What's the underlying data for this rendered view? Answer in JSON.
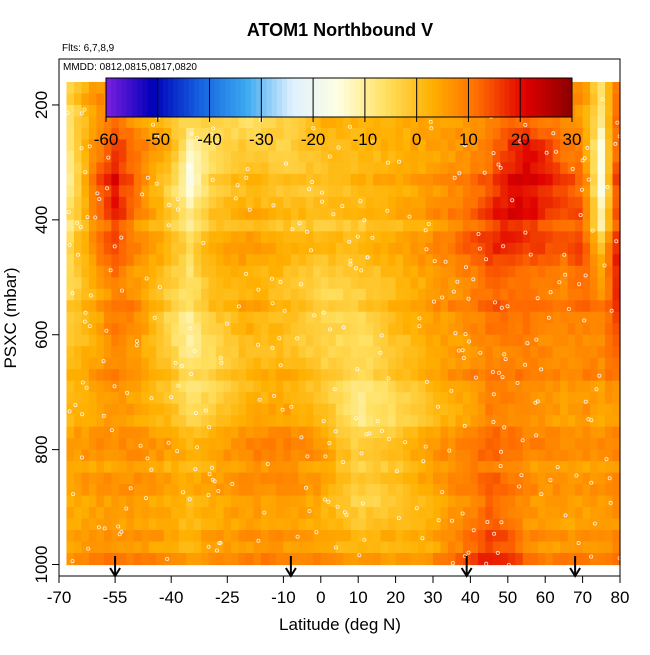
{
  "figure": {
    "title": "ATOM1 Northbound V",
    "flights_note": "Flts: 6,7,8,9",
    "dates_note": "MMDD: 0812,0815,0817,0820"
  },
  "chart_data": {
    "type": "heatmap",
    "title": "ATOM1 Northbound V",
    "xlabel": "Latitude (deg N)",
    "ylabel": "PSXC (mbar)",
    "x_ticks": [
      -70,
      -55,
      -40,
      -25,
      -10,
      0,
      10,
      20,
      30,
      40,
      50,
      60,
      70,
      80
    ],
    "y_ticks": [
      200,
      400,
      600,
      800,
      1000
    ],
    "xlim": [
      -70,
      80
    ],
    "ylim": [
      1020,
      120
    ],
    "data_extent": {
      "x": [
        -68,
        80
      ],
      "p": [
        160,
        1000
      ]
    },
    "y_reversed": true,
    "colorbar": {
      "ticks": [
        -60,
        -50,
        -40,
        -30,
        -20,
        -10,
        0,
        10,
        20,
        30
      ],
      "range": [
        -60,
        30
      ],
      "colors": [
        "#7b20e0",
        "#0000b8",
        "#1560e0",
        "#3aa8f0",
        "#dff1ff",
        "#ffffe0",
        "#ffe060",
        "#ffb000",
        "#ff6a00",
        "#e00000",
        "#8b0000"
      ]
    },
    "profile_markers_lat": [
      -55,
      -8,
      39,
      68
    ],
    "field": {
      "latitudes": [
        -68,
        -60,
        -55,
        -50,
        -40,
        -35,
        -30,
        -20,
        -10,
        0,
        10,
        20,
        30,
        40,
        45,
        50,
        55,
        60,
        65,
        70,
        75,
        80
      ],
      "pressures": [
        180,
        230,
        280,
        330,
        380,
        430,
        480,
        530,
        580,
        630,
        680,
        730,
        780,
        830,
        880,
        930,
        980
      ],
      "values": [
        [
          -4,
          6,
          6,
          6,
          5,
          4,
          4,
          4,
          3,
          6,
          6,
          7,
          8,
          8,
          9,
          10,
          12,
          10,
          8,
          7,
          -6,
          14
        ],
        [
          -6,
          8,
          12,
          8,
          2,
          -4,
          0,
          -4,
          -2,
          4,
          4,
          4,
          6,
          8,
          10,
          12,
          14,
          12,
          10,
          8,
          -8,
          18
        ],
        [
          -8,
          10,
          18,
          14,
          4,
          -12,
          -6,
          0,
          -2,
          2,
          2,
          4,
          6,
          8,
          12,
          18,
          22,
          18,
          12,
          10,
          -14,
          20
        ],
        [
          -12,
          12,
          20,
          12,
          -4,
          -16,
          -4,
          2,
          0,
          0,
          2,
          4,
          6,
          10,
          14,
          20,
          22,
          20,
          16,
          12,
          -16,
          22
        ],
        [
          -10,
          10,
          18,
          10,
          -2,
          -12,
          -2,
          2,
          0,
          0,
          0,
          2,
          6,
          10,
          16,
          20,
          20,
          16,
          14,
          12,
          -12,
          20
        ],
        [
          -8,
          8,
          14,
          8,
          0,
          -8,
          2,
          4,
          2,
          0,
          0,
          2,
          6,
          12,
          16,
          18,
          16,
          14,
          12,
          14,
          -6,
          20
        ],
        [
          -6,
          6,
          12,
          6,
          0,
          -6,
          2,
          4,
          2,
          -2,
          0,
          2,
          6,
          10,
          14,
          14,
          12,
          12,
          10,
          14,
          4,
          22
        ],
        [
          -4,
          4,
          10,
          8,
          -2,
          -6,
          0,
          4,
          2,
          -4,
          -2,
          2,
          6,
          10,
          12,
          12,
          12,
          10,
          10,
          12,
          8,
          20
        ],
        [
          -2,
          4,
          12,
          10,
          -4,
          -10,
          -2,
          4,
          2,
          -2,
          -4,
          2,
          6,
          8,
          12,
          12,
          12,
          10,
          10,
          10,
          10,
          18
        ],
        [
          0,
          6,
          10,
          8,
          -2,
          -8,
          -4,
          2,
          2,
          -2,
          -4,
          0,
          6,
          8,
          10,
          10,
          10,
          10,
          8,
          10,
          10,
          14
        ],
        [
          2,
          6,
          8,
          6,
          0,
          -6,
          -4,
          2,
          4,
          0,
          -6,
          -2,
          4,
          8,
          10,
          10,
          10,
          8,
          8,
          8,
          8,
          10
        ],
        [
          2,
          6,
          8,
          6,
          2,
          -4,
          -2,
          4,
          6,
          2,
          -8,
          -4,
          2,
          6,
          10,
          10,
          8,
          8,
          6,
          8,
          6,
          8
        ],
        [
          4,
          6,
          6,
          6,
          4,
          0,
          2,
          6,
          8,
          4,
          -6,
          -2,
          4,
          8,
          12,
          10,
          8,
          8,
          6,
          6,
          6,
          8
        ],
        [
          4,
          6,
          6,
          6,
          4,
          2,
          4,
          8,
          8,
          6,
          -2,
          0,
          6,
          10,
          12,
          10,
          8,
          6,
          6,
          6,
          6,
          8
        ],
        [
          4,
          6,
          6,
          6,
          4,
          2,
          4,
          6,
          6,
          4,
          -4,
          -2,
          4,
          8,
          12,
          10,
          8,
          6,
          6,
          6,
          6,
          8
        ],
        [
          4,
          6,
          6,
          6,
          4,
          2,
          4,
          6,
          6,
          4,
          0,
          2,
          4,
          10,
          14,
          12,
          8,
          6,
          6,
          6,
          6,
          8
        ],
        [
          6,
          8,
          8,
          8,
          6,
          4,
          6,
          8,
          8,
          6,
          4,
          4,
          6,
          14,
          18,
          16,
          10,
          8,
          8,
          8,
          8,
          10
        ]
      ]
    }
  }
}
